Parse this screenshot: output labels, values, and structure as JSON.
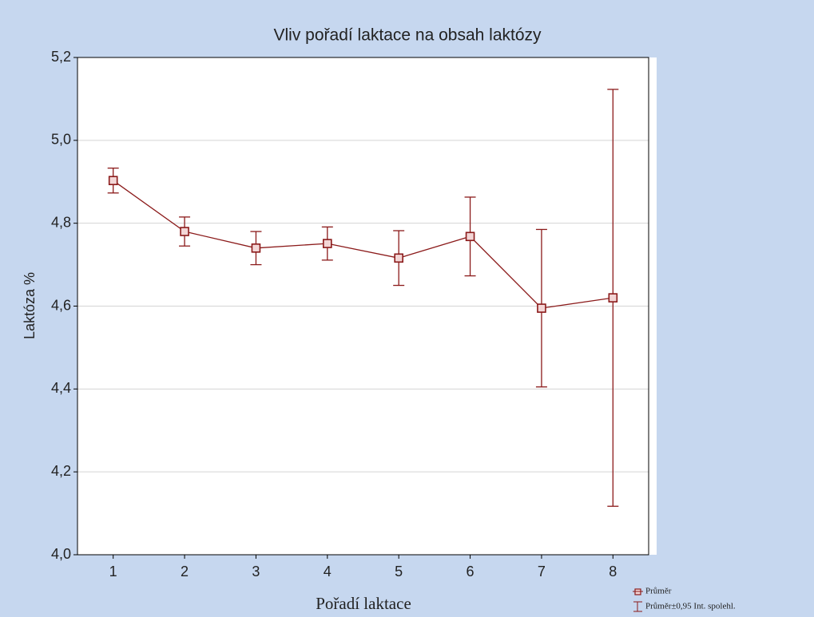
{
  "chart_data": {
    "type": "line",
    "title": "Vliv pořadí laktace na obsah laktózy",
    "x_label": "Pořadí laktace",
    "y_label": "Laktóza %",
    "categories": [
      "1",
      "2",
      "3",
      "4",
      "5",
      "6",
      "7",
      "8"
    ],
    "series": [
      {
        "name": "Průměr",
        "error_name": "Průměr±0,95 Int. spolehl.",
        "color": "#8b1a1a",
        "values": [
          4.903,
          4.78,
          4.74,
          4.751,
          4.716,
          4.768,
          4.595,
          4.62
        ],
        "errors": [
          0.03,
          0.035,
          0.04,
          0.04,
          0.066,
          0.095,
          0.19,
          0.503
        ]
      }
    ],
    "ylim": [
      4.0,
      5.2
    ],
    "yticks": [
      {
        "value": 4.0,
        "label": "4,0"
      },
      {
        "value": 4.2,
        "label": "4,2"
      },
      {
        "value": 4.4,
        "label": "4,4"
      },
      {
        "value": 4.6,
        "label": "4,6"
      },
      {
        "value": 4.8,
        "label": "4,8"
      },
      {
        "value": 5.0,
        "label": "5,0"
      },
      {
        "value": 5.2,
        "label": "5,2"
      }
    ],
    "grid": true,
    "legend": "bottom-right"
  }
}
